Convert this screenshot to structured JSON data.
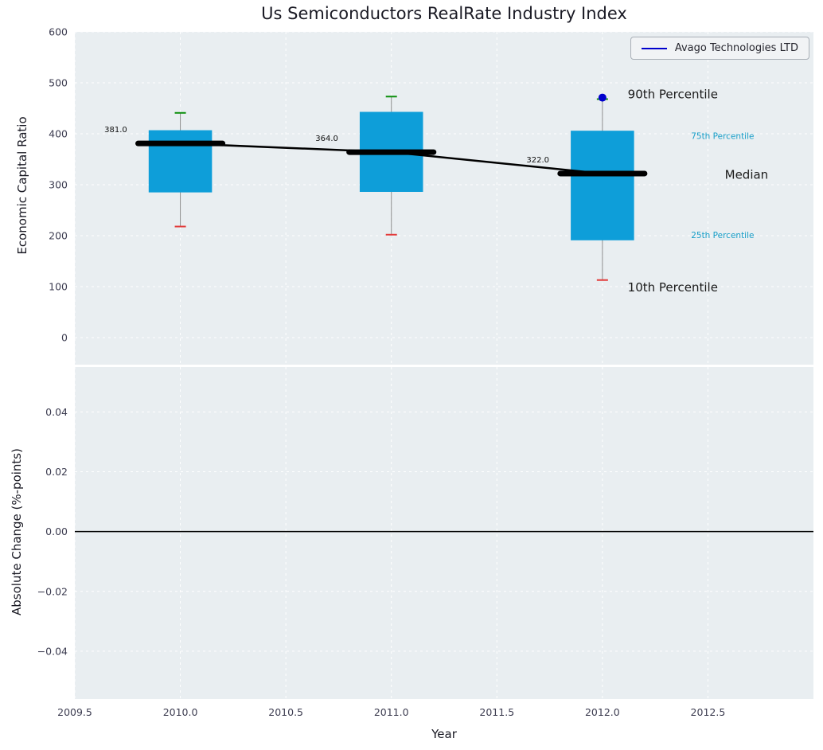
{
  "figure": {
    "title": "Us Semiconductors RealRate Industry Index",
    "xlabel": "Year",
    "legend": {
      "label": "Avago Technologies LTD",
      "line_color": "#0000cd"
    }
  },
  "chart_data": [
    {
      "type": "boxplot",
      "title": "Us Semiconductors RealRate Industry Index",
      "xlabel": "Year",
      "ylabel": "Economic Capital Ratio",
      "xlim": [
        2009.5,
        2013.0
      ],
      "ylim": [
        -53,
        600
      ],
      "grid": "white dashed on",
      "legend_position": "upper right",
      "panel_color": "#e9eef1",
      "box_color": "#0e9ed9",
      "whisker_color": "#8f8f8f",
      "cap_high_color": "#0c8f0c",
      "cap_low_color": "#e23b3b",
      "median_color": "#000000",
      "xticks": {
        "values": [
          2009.5,
          2010.0,
          2010.5,
          2011.0,
          2011.5,
          2012.0,
          2012.5
        ],
        "labels": [
          "2009.5",
          "2010.0",
          "2010.5",
          "2011.0",
          "2011.5",
          "2012.0",
          "2012.5"
        ]
      },
      "yticks": {
        "values": [
          0,
          100,
          200,
          300,
          400,
          500,
          600
        ],
        "labels": [
          "0",
          "100",
          "200",
          "300",
          "400",
          "500",
          "600"
        ]
      },
      "boxes": [
        {
          "x": 2010.0,
          "median": 381.0,
          "q1": 285,
          "q3": 407,
          "whisker_low": 218,
          "whisker_high": 441,
          "median_label": "381.0"
        },
        {
          "x": 2011.0,
          "median": 364.0,
          "q1": 286,
          "q3": 443,
          "whisker_low": 202,
          "whisker_high": 473,
          "median_label": "364.0"
        },
        {
          "x": 2012.0,
          "median": 322.0,
          "q1": 191,
          "q3": 406,
          "whisker_low": 113,
          "whisker_high": 468,
          "median_label": "322.0"
        }
      ],
      "median_trend": {
        "x": [
          2010.0,
          2011.0,
          2012.0
        ],
        "y": [
          381.0,
          364.0,
          322.0
        ]
      },
      "company_series": {
        "name": "Avago Technologies LTD",
        "color": "#0000cd",
        "points": [
          {
            "x": 2012.0,
            "y": 471
          }
        ]
      },
      "annotations": [
        {
          "text": "90th Percentile",
          "x": 2012.12,
          "y": 478,
          "color": "#1a1a1a",
          "font_size": 15
        },
        {
          "text": "75th Percentile",
          "x": 2012.42,
          "y": 396,
          "color": "#189ec8",
          "font_size": 10.5
        },
        {
          "text": "Median",
          "x": 2012.58,
          "y": 320,
          "color": "#1a1a1a",
          "font_size": 15
        },
        {
          "text": "25th Percentile",
          "x": 2012.42,
          "y": 201,
          "color": "#189ec8",
          "font_size": 10.5
        },
        {
          "text": "10th Percentile",
          "x": 2012.12,
          "y": 99,
          "color": "#1a1a1a",
          "font_size": 15
        }
      ]
    },
    {
      "type": "line",
      "ylabel": "Absolute Change (%-points)",
      "xlabel": "Year",
      "xlim": [
        2009.5,
        2013.0
      ],
      "ylim": [
        -0.056,
        0.055
      ],
      "grid": "white dashed on",
      "yticks": {
        "values": [
          0.04,
          0.02,
          0.0,
          -0.02,
          -0.04
        ],
        "labels": [
          "0.04",
          "0.02",
          "0.00",
          "−0.02",
          "−0.04"
        ]
      },
      "zero_line": 0.0,
      "series": []
    }
  ]
}
